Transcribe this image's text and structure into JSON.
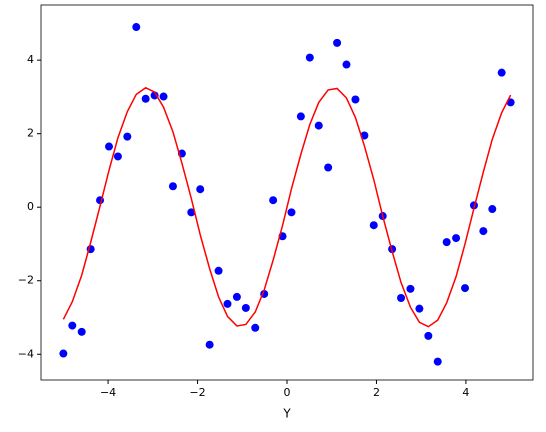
{
  "chart_data": {
    "type": "scatter",
    "xlabel": "Y",
    "x": [
      -5,
      -4.8,
      -4.59,
      -4.39,
      -4.18,
      -3.98,
      -3.78,
      -3.57,
      -3.37,
      -3.16,
      -2.96,
      -2.76,
      -2.55,
      -2.35,
      -2.14,
      -1.94,
      -1.73,
      -1.53,
      -1.33,
      -1.12,
      -0.92,
      -0.71,
      -0.51,
      -0.31,
      -0.1,
      0.1,
      0.31,
      0.51,
      0.71,
      0.92,
      1.12,
      1.33,
      1.53,
      1.73,
      1.94,
      2.14,
      2.35,
      2.55,
      2.76,
      2.96,
      3.16,
      3.37,
      3.57,
      3.78,
      3.98,
      4.18,
      4.39,
      4.59,
      4.8,
      5
    ],
    "series": [
      {
        "type": "scatter",
        "color": "#0000ff",
        "values": [
          -3.98,
          -3.22,
          -3.39,
          -1.14,
          0.19,
          1.65,
          1.38,
          1.92,
          4.9,
          2.95,
          3.04,
          3.01,
          0.57,
          1.46,
          -0.14,
          0.49,
          -3.74,
          -1.73,
          -2.63,
          -2.44,
          -2.74,
          -3.28,
          -2.36,
          0.19,
          -0.79,
          -0.14,
          2.47,
          4.07,
          2.22,
          1.08,
          4.47,
          3.88,
          2.93,
          1.95,
          -0.49,
          -0.24,
          -1.14,
          -2.47,
          -2.22,
          -2.76,
          -3.5,
          -4.2,
          -0.95,
          -0.84,
          -2.2,
          0.05,
          -0.65,
          -0.05,
          3.66,
          2.85
        ]
      },
      {
        "type": "line",
        "color": "#ff0000",
        "values": [
          -3.05,
          -2.57,
          -1.85,
          -0.96,
          0.03,
          1.0,
          1.89,
          2.6,
          3.07,
          3.25,
          3.13,
          2.72,
          2.05,
          1.2,
          0.24,
          -0.75,
          -1.67,
          -2.44,
          -2.97,
          -3.23,
          -3.19,
          -2.85,
          -2.25,
          -1.44,
          -0.5,
          0.5,
          1.44,
          2.25,
          2.85,
          3.19,
          3.23,
          2.97,
          2.44,
          1.67,
          0.75,
          -0.24,
          -1.2,
          -2.05,
          -2.72,
          -3.13,
          -3.25,
          -3.07,
          -2.6,
          -1.89,
          -1.0,
          -0.03,
          0.96,
          1.85,
          2.57,
          3.05
        ]
      }
    ],
    "xlim": [
      -5.5,
      5.5
    ],
    "ylim": [
      -4.7,
      5.5
    ],
    "xticks": [
      {
        "value": -4,
        "label": "−4"
      },
      {
        "value": -2,
        "label": "−2"
      },
      0,
      2,
      4
    ],
    "yticks": [
      {
        "value": -4,
        "label": "−4"
      },
      {
        "value": -2,
        "label": "−2"
      },
      0,
      2,
      4
    ]
  }
}
